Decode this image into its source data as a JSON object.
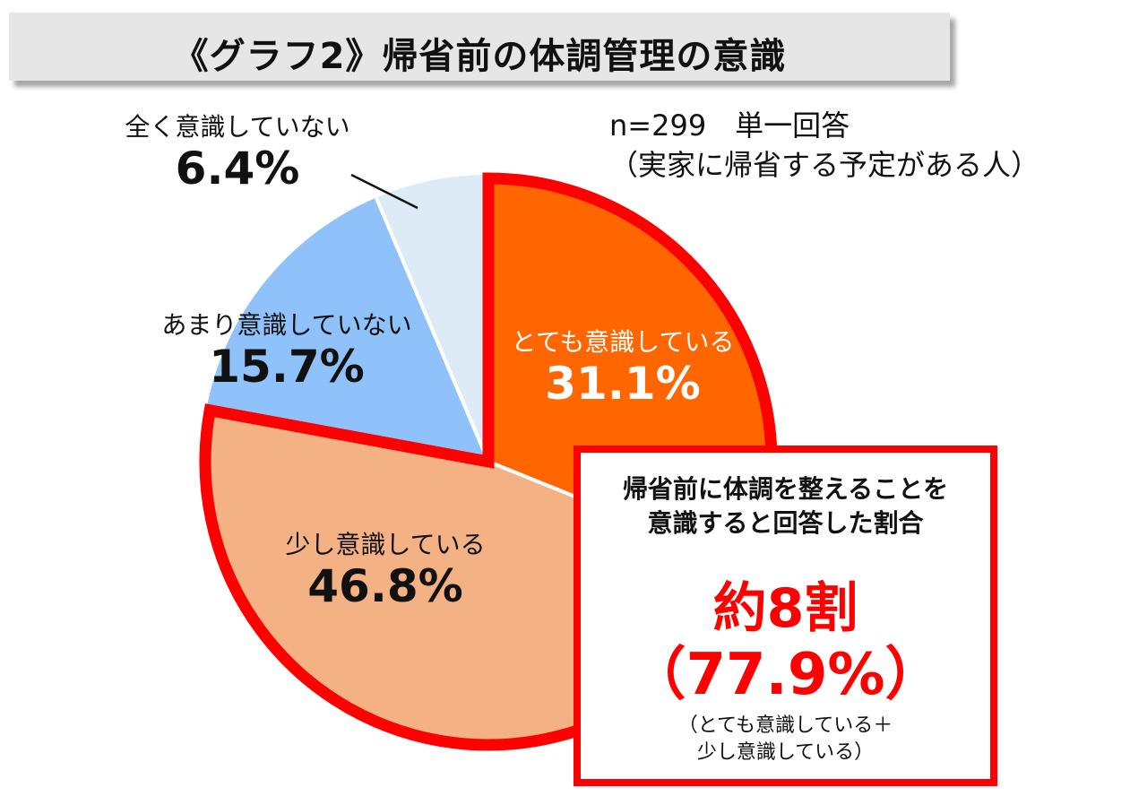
{
  "title": "《グラフ2》帰省前の体調管理の意識",
  "note": {
    "line1": "n=299　単一回答",
    "line2": "（実家に帰省する予定がある人）"
  },
  "chart_data": {
    "type": "pie",
    "title": "《グラフ2》帰省前の体調管理の意識",
    "start_angle_deg": 0,
    "direction": "clockwise",
    "slices": [
      {
        "label": "とても意識している",
        "value": 31.1,
        "display": "31.1%",
        "color": "#ff6600"
      },
      {
        "label": "少し意識している",
        "value": 46.8,
        "display": "46.8%",
        "color": "#f4b183"
      },
      {
        "label": "あまり意識していない",
        "value": 15.7,
        "display": "15.7%",
        "color": "#8fc1fb"
      },
      {
        "label": "全く意識していない",
        "value": 6.4,
        "display": "6.4%",
        "color": "#ddebf7"
      }
    ],
    "highlight_slices": [
      "とても意識している",
      "少し意識している"
    ],
    "highlight_color": "#ff0000"
  },
  "callout": {
    "desc_line1": "帰省前に体調を整えることを",
    "desc_line2": "意識すると回答した割合",
    "big": "約8割",
    "big_pct": "（77.9%）",
    "foot_line1": "（とても意識している＋",
    "foot_line2": "少し意識している）"
  }
}
